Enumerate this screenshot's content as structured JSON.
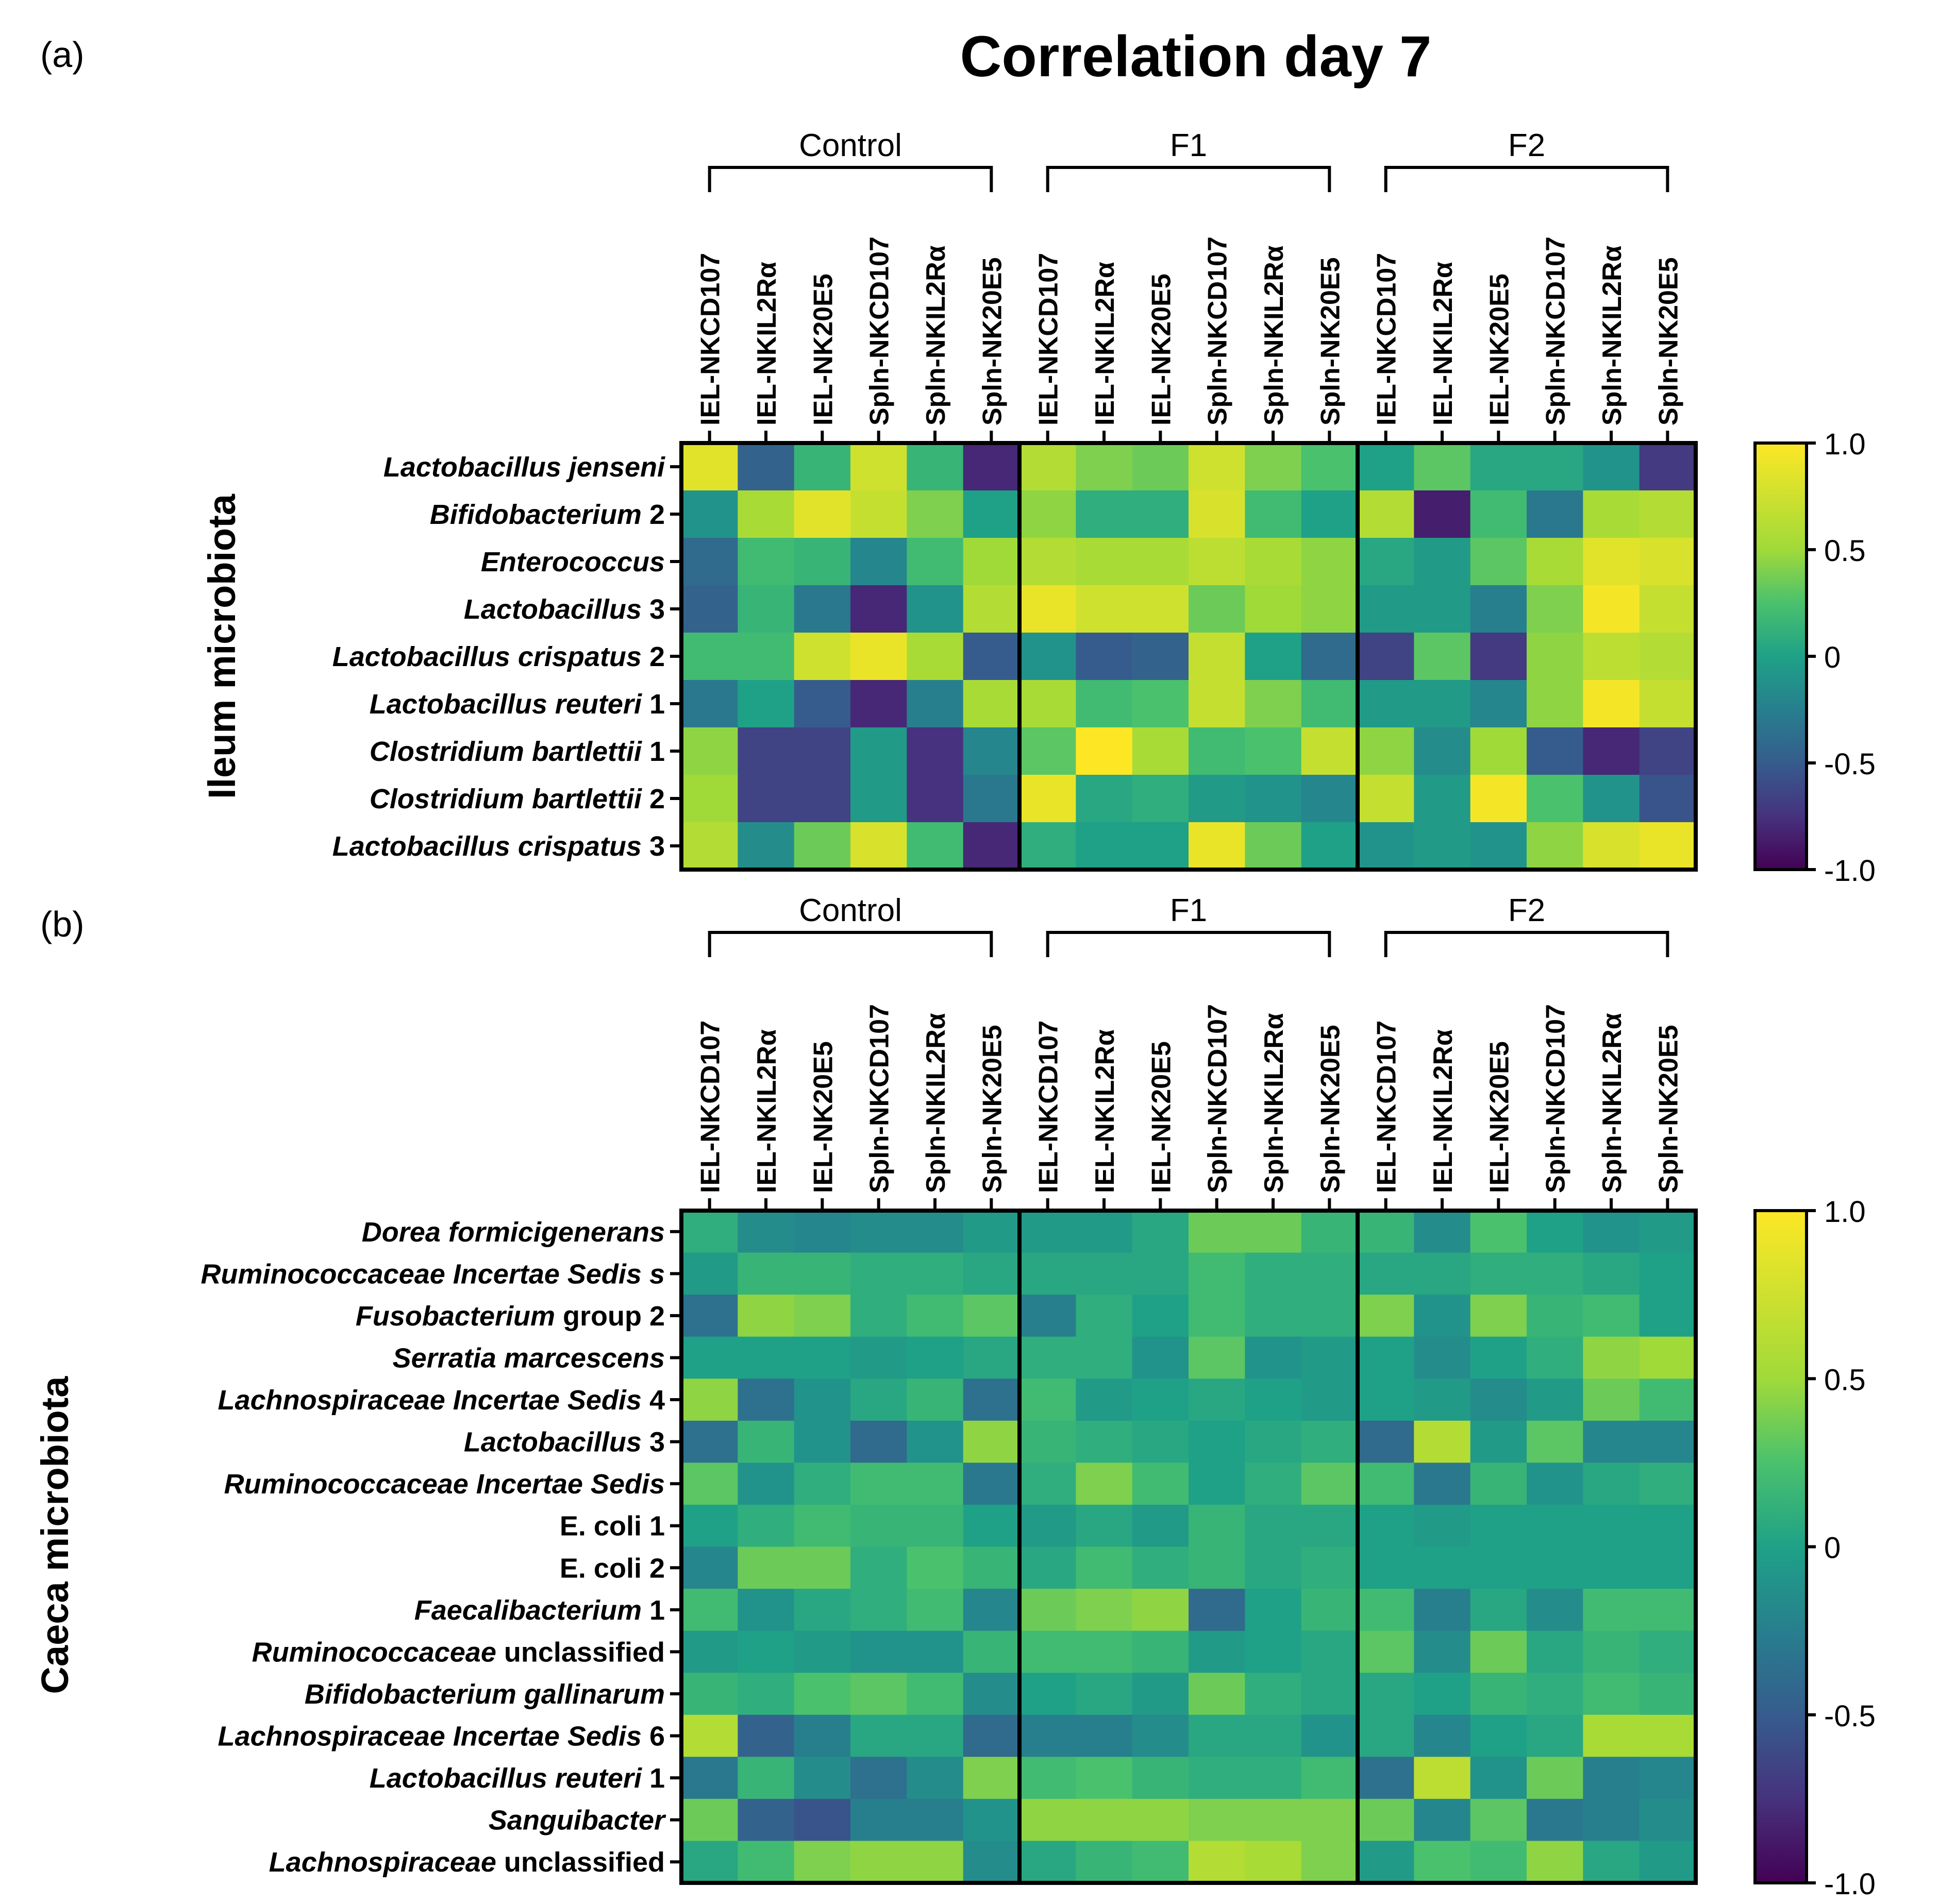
{
  "figure": {
    "title": "Correlation day 7",
    "panel_a_label": "(a)",
    "panel_b_label": "(b)",
    "panel_a_ylabel": "Ileum microbiota",
    "panel_b_ylabel": "Caeca microbiota",
    "colorbar_ticks": [
      "1.0",
      "0.5",
      "0",
      "-0.5",
      "-1.0"
    ]
  },
  "chart_data": [
    {
      "type": "heatmap",
      "panel": "a",
      "ylabel": "Ileum microbiota",
      "groups": [
        "Control",
        "F1",
        "F2"
      ],
      "columns": [
        "IEL-NKCD107",
        "IEL-NKIL2Rα",
        "IEL-NK20E5",
        "Spln-NKCD107",
        "Spln-NKIL2Rα",
        "Spln-NK20E5",
        "IEL-NKCD107",
        "IEL-NKIL2Rα",
        "IEL-NK20E5",
        "Spln-NKCD107",
        "Spln-NKIL2Rα",
        "Spln-NK20E5",
        "IEL-NKCD107",
        "IEL-NKIL2Rα",
        "IEL-NK20E5",
        "Spln-NKCD107",
        "Spln-NKIL2Rα",
        "Spln-NK20E5"
      ],
      "rows": [
        [
          {
            "t": "Lactobacillus jenseni",
            "i": true
          }
        ],
        [
          {
            "t": "Bifidobacterium",
            "i": true
          },
          {
            "t": " 2",
            "i": false
          }
        ],
        [
          {
            "t": "Enterococcus",
            "i": true
          }
        ],
        [
          {
            "t": "Lactobacillus",
            "i": true
          },
          {
            "t": " 3",
            "i": false
          }
        ],
        [
          {
            "t": "Lactobacillus crispatus",
            "i": true
          },
          {
            "t": " 2",
            "i": false
          }
        ],
        [
          {
            "t": "Lactobacillus reuteri",
            "i": true
          },
          {
            "t": " 1",
            "i": false
          }
        ],
        [
          {
            "t": "Clostridium bartlettii",
            "i": true
          },
          {
            "t": " 1",
            "i": false
          }
        ],
        [
          {
            "t": "Clostridium bartlettii",
            "i": true
          },
          {
            "t": " 2",
            "i": false
          }
        ],
        [
          {
            "t": "Lactobacillus crispatus",
            "i": true
          },
          {
            "t": " 3",
            "i": false
          }
        ]
      ],
      "values": [
        [
          0.85,
          -0.45,
          0.15,
          0.75,
          0.15,
          -0.8,
          0.6,
          0.4,
          0.35,
          0.75,
          0.4,
          0.25,
          0.0,
          0.3,
          0.05,
          0.05,
          -0.1,
          -0.7
        ],
        [
          -0.1,
          0.55,
          0.85,
          0.7,
          0.4,
          0.0,
          0.45,
          0.1,
          0.1,
          0.8,
          0.2,
          0.0,
          0.6,
          -0.85,
          0.2,
          -0.3,
          0.55,
          0.6
        ],
        [
          -0.4,
          0.2,
          0.15,
          -0.2,
          0.2,
          0.5,
          0.6,
          0.55,
          0.55,
          0.65,
          0.55,
          0.45,
          0.05,
          -0.05,
          0.3,
          0.55,
          0.85,
          0.8
        ],
        [
          -0.45,
          0.15,
          -0.3,
          -0.8,
          -0.1,
          0.6,
          0.9,
          0.75,
          0.75,
          0.35,
          0.5,
          0.45,
          -0.05,
          -0.05,
          -0.25,
          0.4,
          0.95,
          0.7
        ],
        [
          0.2,
          0.2,
          0.75,
          0.9,
          0.55,
          -0.5,
          -0.1,
          -0.5,
          -0.45,
          0.7,
          0.0,
          -0.4,
          -0.65,
          0.3,
          -0.7,
          0.45,
          0.65,
          0.6
        ],
        [
          -0.3,
          0.0,
          -0.5,
          -0.8,
          -0.25,
          0.55,
          0.55,
          0.2,
          0.25,
          0.7,
          0.4,
          0.2,
          -0.05,
          -0.05,
          -0.2,
          0.45,
          0.95,
          0.7
        ],
        [
          0.45,
          -0.65,
          -0.65,
          -0.05,
          -0.75,
          -0.2,
          0.3,
          1.0,
          0.55,
          0.2,
          0.25,
          0.7,
          0.45,
          -0.15,
          0.5,
          -0.5,
          -0.8,
          -0.65
        ],
        [
          0.5,
          -0.65,
          -0.65,
          -0.05,
          -0.75,
          -0.3,
          0.9,
          0.05,
          0.1,
          -0.05,
          -0.1,
          -0.2,
          0.7,
          -0.05,
          0.95,
          0.25,
          -0.1,
          -0.55
        ],
        [
          0.6,
          -0.15,
          0.35,
          0.8,
          0.2,
          -0.8,
          0.1,
          0.0,
          0.0,
          0.9,
          0.35,
          0.0,
          -0.1,
          -0.05,
          -0.1,
          0.45,
          0.8,
          0.9
        ]
      ],
      "vmin": -1.0,
      "vmax": 1.0
    },
    {
      "type": "heatmap",
      "panel": "b",
      "ylabel": "Caeca microbiota",
      "groups": [
        "Control",
        "F1",
        "F2"
      ],
      "columns": [
        "IEL-NKCD107",
        "IEL-NKIL2Rα",
        "IEL-NK20E5",
        "Spln-NKCD107",
        "Spln-NKIL2Rα",
        "Spln-NK20E5",
        "IEL-NKCD107",
        "IEL-NKIL2Rα",
        "IEL-NK20E5",
        "Spln-NKCD107",
        "Spln-NKIL2Rα",
        "Spln-NK20E5",
        "IEL-NKCD107",
        "IEL-NKIL2Rα",
        "IEL-NK20E5",
        "Spln-NKCD107",
        "Spln-NKIL2Rα",
        "Spln-NK20E5"
      ],
      "rows": [
        [
          {
            "t": "Dorea formicigenerans",
            "i": true
          }
        ],
        [
          {
            "t": "Ruminococcaceae Incertae Sedis s",
            "i": true
          }
        ],
        [
          {
            "t": "Fusobacterium",
            "i": true
          },
          {
            "t": " group 2",
            "i": false
          }
        ],
        [
          {
            "t": "Serratia marcescens",
            "i": true
          }
        ],
        [
          {
            "t": "Lachnospiraceae Incertae Sedis",
            "i": true
          },
          {
            "t": " 4",
            "i": false
          }
        ],
        [
          {
            "t": "Lactobacillus",
            "i": true
          },
          {
            "t": " 3",
            "i": false
          }
        ],
        [
          {
            "t": "Ruminococcaceae Incertae Sedis",
            "i": true
          }
        ],
        [
          {
            "t": "E. coli 1",
            "i": false
          }
        ],
        [
          {
            "t": "E. coli 2",
            "i": false
          }
        ],
        [
          {
            "t": "Faecalibacterium",
            "i": true
          },
          {
            "t": " 1",
            "i": false
          }
        ],
        [
          {
            "t": "Ruminococcaceae",
            "i": true
          },
          {
            "t": " unclassified",
            "i": false
          }
        ],
        [
          {
            "t": "Bifidobacterium gallinarum",
            "i": true
          }
        ],
        [
          {
            "t": "Lachnospiraceae Incertae Sedis",
            "i": true
          },
          {
            "t": " 6",
            "i": false
          }
        ],
        [
          {
            "t": "Lactobacillus reuteri",
            "i": true
          },
          {
            "t": " 1",
            "i": false
          }
        ],
        [
          {
            "t": "Sanguibacter",
            "i": true
          }
        ],
        [
          {
            "t": "Lachnospiraceae",
            "i": true
          },
          {
            "t": " unclassified",
            "i": false
          }
        ]
      ],
      "values": [
        [
          0.1,
          -0.15,
          -0.2,
          -0.15,
          -0.15,
          -0.05,
          -0.05,
          -0.05,
          0.05,
          0.35,
          0.35,
          0.15,
          0.15,
          -0.15,
          0.25,
          0.0,
          -0.1,
          -0.05
        ],
        [
          -0.05,
          0.15,
          0.15,
          0.1,
          0.1,
          0.05,
          0.05,
          0.05,
          0.05,
          0.2,
          0.1,
          0.1,
          0.05,
          0.05,
          0.1,
          0.1,
          0.05,
          0.0
        ],
        [
          -0.35,
          0.45,
          0.4,
          0.1,
          0.2,
          0.3,
          -0.25,
          0.1,
          0.0,
          0.2,
          0.1,
          0.1,
          0.4,
          -0.1,
          0.4,
          0.15,
          0.2,
          0.0
        ],
        [
          0.0,
          0.0,
          0.0,
          -0.05,
          0.0,
          0.05,
          0.1,
          0.1,
          -0.1,
          0.3,
          -0.1,
          -0.05,
          0.0,
          -0.15,
          0.0,
          0.1,
          0.45,
          0.5
        ],
        [
          0.45,
          -0.35,
          -0.1,
          0.05,
          0.15,
          -0.35,
          0.2,
          -0.05,
          0.0,
          0.05,
          0.0,
          -0.05,
          0.0,
          -0.05,
          -0.15,
          -0.05,
          0.35,
          0.2
        ],
        [
          -0.35,
          0.15,
          -0.1,
          -0.4,
          -0.1,
          0.45,
          0.15,
          0.1,
          0.05,
          0.0,
          0.05,
          0.1,
          -0.4,
          0.6,
          -0.05,
          0.3,
          -0.2,
          -0.2
        ],
        [
          0.3,
          -0.1,
          0.1,
          0.2,
          0.2,
          -0.3,
          0.1,
          0.4,
          0.2,
          0.0,
          0.1,
          0.3,
          0.2,
          -0.3,
          0.15,
          -0.1,
          0.05,
          0.1
        ],
        [
          0.0,
          0.1,
          0.2,
          0.15,
          0.15,
          0.0,
          -0.05,
          0.05,
          -0.05,
          0.15,
          0.05,
          0.05,
          0.0,
          -0.05,
          0.0,
          0.0,
          0.0,
          0.0
        ],
        [
          -0.2,
          0.35,
          0.35,
          0.1,
          0.25,
          0.15,
          0.05,
          0.2,
          0.1,
          0.15,
          0.05,
          0.1,
          0.0,
          0.0,
          0.0,
          0.0,
          0.0,
          0.0
        ],
        [
          0.2,
          -0.1,
          0.05,
          0.1,
          0.2,
          -0.2,
          0.35,
          0.4,
          0.45,
          -0.4,
          0.0,
          0.15,
          0.2,
          -0.25,
          0.05,
          -0.15,
          0.2,
          0.2
        ],
        [
          -0.05,
          0.0,
          -0.05,
          -0.1,
          -0.1,
          0.15,
          0.2,
          0.2,
          0.15,
          -0.05,
          0.0,
          0.05,
          0.3,
          -0.15,
          0.35,
          0.05,
          0.15,
          0.1
        ],
        [
          0.15,
          0.1,
          0.25,
          0.3,
          0.2,
          -0.15,
          0.0,
          0.05,
          -0.05,
          0.35,
          0.1,
          0.05,
          0.05,
          0.0,
          0.15,
          0.1,
          0.2,
          0.15
        ],
        [
          0.6,
          -0.45,
          -0.25,
          0.05,
          0.05,
          -0.4,
          -0.25,
          -0.25,
          -0.15,
          0.05,
          0.05,
          -0.1,
          0.05,
          -0.2,
          0.0,
          0.05,
          0.55,
          0.55
        ],
        [
          -0.3,
          0.15,
          -0.15,
          -0.35,
          -0.15,
          0.4,
          0.2,
          0.25,
          0.15,
          0.1,
          0.1,
          0.2,
          -0.35,
          0.65,
          -0.1,
          0.35,
          -0.25,
          -0.2
        ],
        [
          0.35,
          -0.45,
          -0.55,
          -0.25,
          -0.25,
          -0.1,
          0.45,
          0.45,
          0.45,
          0.4,
          0.4,
          0.4,
          0.35,
          -0.2,
          0.3,
          -0.3,
          -0.25,
          -0.15
        ],
        [
          0.05,
          0.2,
          0.4,
          0.45,
          0.45,
          -0.15,
          0.05,
          0.15,
          0.2,
          0.6,
          0.55,
          0.4,
          -0.05,
          0.25,
          0.2,
          0.45,
          0.05,
          -0.05
        ]
      ],
      "vmin": -1.0,
      "vmax": 1.0
    }
  ]
}
